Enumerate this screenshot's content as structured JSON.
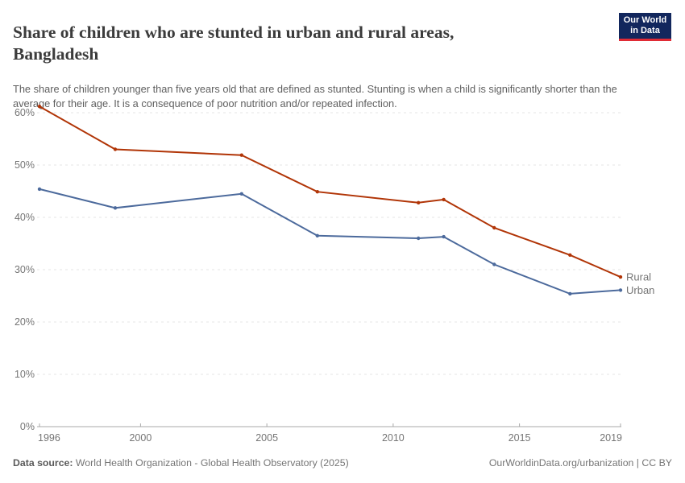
{
  "header": {
    "title_line1": "Share of children who are stunted in urban and rural areas,",
    "title_line2": "Bangladesh",
    "subtitle": "The share of children younger than five years old that are defined as stunted. Stunting is when a child is significantly shorter than the average for their age. It is a consequence of poor nutrition and/or repeated infection.",
    "logo": {
      "line1": "Our World",
      "line2": "in Data",
      "bg_color": "#12275D",
      "accent_color": "#E02B35"
    }
  },
  "chart_data": {
    "type": "line",
    "x": [
      1996,
      1999,
      2004,
      2007,
      2011,
      2012,
      2014,
      2017,
      2019
    ],
    "series": [
      {
        "name": "Rural",
        "color": "#B13507",
        "values": [
          61.2,
          53.0,
          51.9,
          44.9,
          42.8,
          43.4,
          38.0,
          32.8,
          28.6
        ]
      },
      {
        "name": "Urban",
        "color": "#4C6A9C",
        "values": [
          45.4,
          41.8,
          44.5,
          36.5,
          36.0,
          36.3,
          31.0,
          25.4,
          26.1
        ]
      }
    ],
    "title": "Share of children who are stunted in urban and rural areas, Bangladesh",
    "xlabel": "",
    "ylabel": "",
    "xlim": [
      1996,
      2019
    ],
    "ylim": [
      0,
      62
    ],
    "x_ticks": [
      1996,
      2000,
      2005,
      2010,
      2015,
      2019
    ],
    "y_ticks": [
      0,
      10,
      20,
      30,
      40,
      50,
      60
    ],
    "y_tick_suffix": "%",
    "grid": true,
    "grid_color": "#e4e4e4",
    "axis_color": "#a8a8a8",
    "legend_position": "end-of-line"
  },
  "footer": {
    "source_label": "Data source:",
    "source_text": " World Health Organization - Global Health Observatory (2025)",
    "right_text": "OurWorldinData.org/urbanization | CC BY"
  }
}
